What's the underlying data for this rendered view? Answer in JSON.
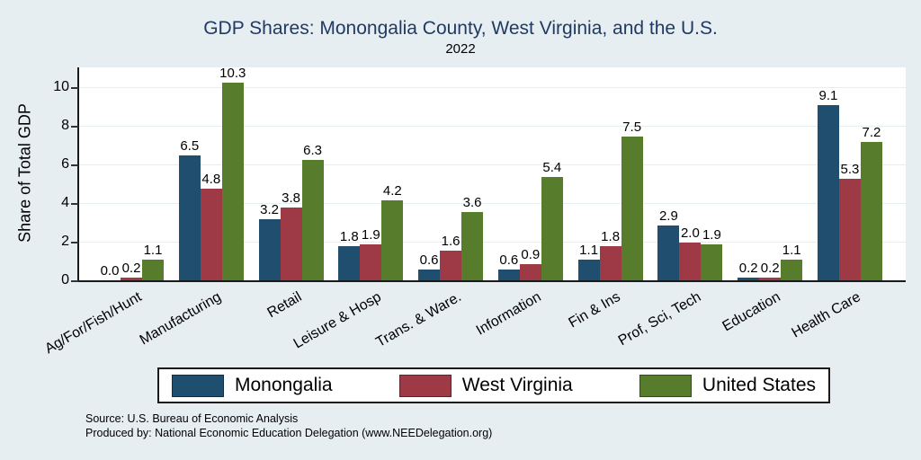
{
  "header": {
    "title": "GDP Shares: Monongalia County, West Virginia, and the U.S.",
    "subtitle": "2022"
  },
  "chart_data": {
    "type": "bar",
    "title": "GDP Shares: Monongalia County, West Virginia, and the U.S.",
    "subtitle": "2022",
    "xlabel": "",
    "ylabel": "Share of Total GDP",
    "ylim": [
      0,
      11
    ],
    "yticks": [
      0,
      2,
      4,
      6,
      8,
      10
    ],
    "grid": true,
    "value_labels": true,
    "legend_position": "bottom",
    "categories": [
      "Ag/For/Fish/Hunt",
      "Manufacturing",
      "Retail",
      "Leisure & Hosp",
      "Trans. & Ware.",
      "Information",
      "Fin & Ins",
      "Prof, Sci, Tech",
      "Education",
      "Health Care"
    ],
    "series": [
      {
        "name": "Monongalia",
        "color": "#1f4e6f",
        "values": [
          0.0,
          6.5,
          3.2,
          1.8,
          0.6,
          0.6,
          1.1,
          2.9,
          0.2,
          9.1
        ]
      },
      {
        "name": "West Virginia",
        "color": "#9e3a46",
        "values": [
          0.2,
          4.8,
          3.8,
          1.9,
          1.6,
          0.9,
          1.8,
          2.0,
          0.2,
          5.3
        ]
      },
      {
        "name": "United States",
        "color": "#577c2c",
        "values": [
          1.1,
          10.3,
          6.3,
          4.2,
          3.6,
          5.4,
          7.5,
          1.9,
          1.1,
          7.2
        ]
      }
    ]
  },
  "colors": {
    "background": "#e7eef2",
    "plot_background": "#ffffff",
    "title": "#203a63",
    "axis": "#1a1a1a"
  },
  "footer": {
    "source": "Source: U.S. Bureau of Economic Analysis",
    "produced_by": "Produced by: National Economic Education Delegation (www.NEEDelegation.org)"
  }
}
